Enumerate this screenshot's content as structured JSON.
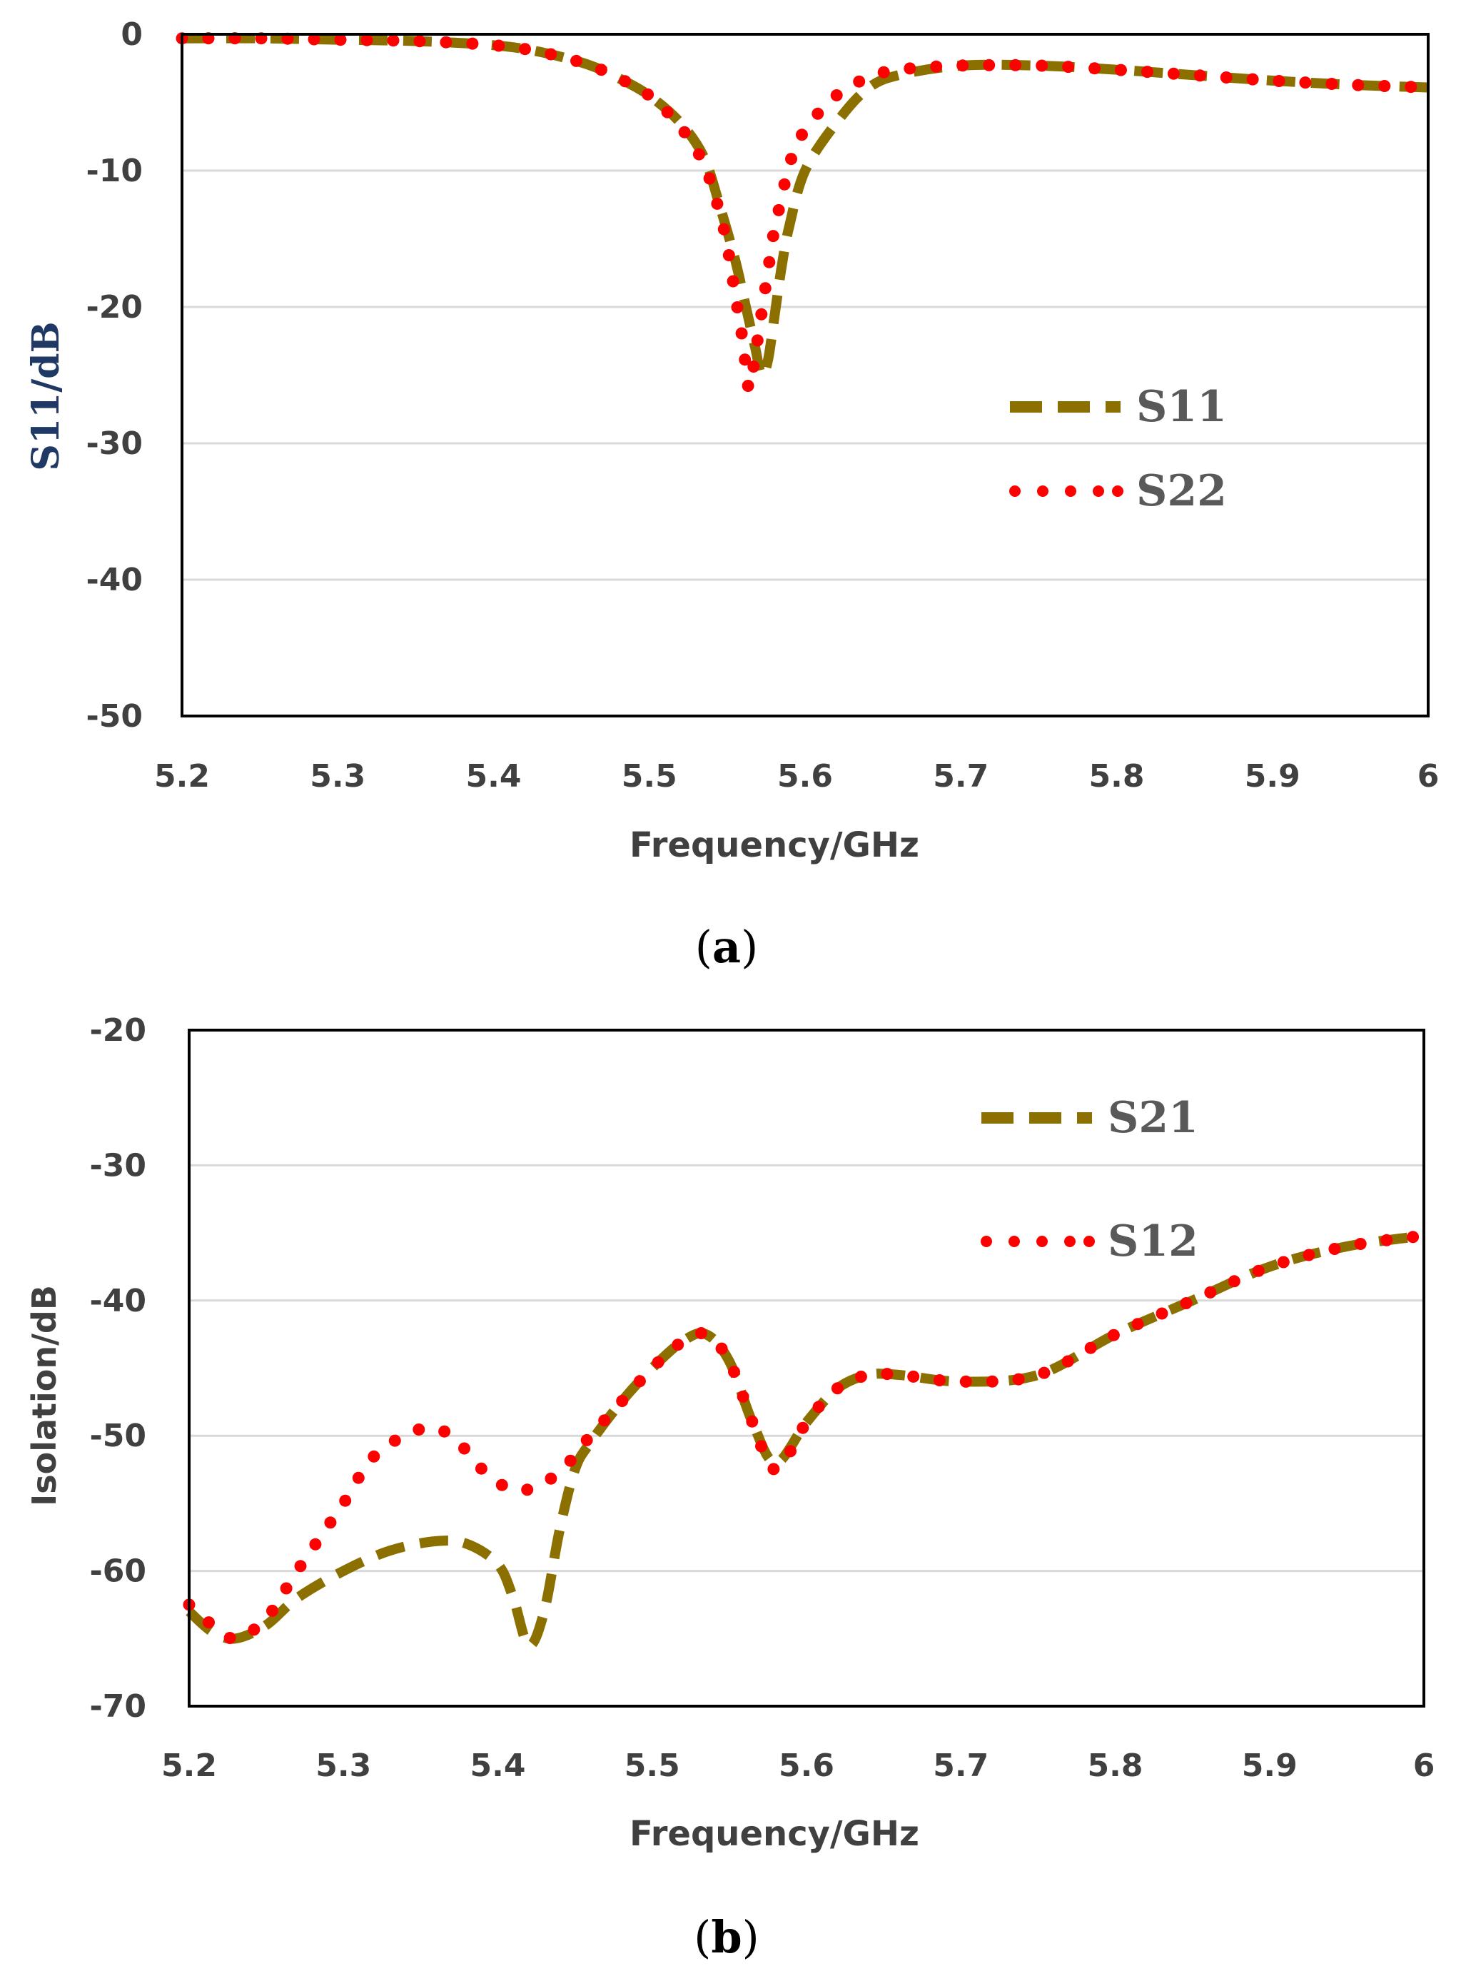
{
  "chart_data": [
    {
      "type": "line",
      "caption_open": "(",
      "caption_letter": "a",
      "caption_close": ")",
      "xlabel": "Frequency/GHz",
      "ylabel": "S11/dB",
      "xlim": [
        5.2,
        6.0
      ],
      "ylim": [
        -50,
        0
      ],
      "xticks": [
        5.2,
        5.3,
        5.4,
        5.5,
        5.6,
        5.7,
        5.8,
        5.9,
        6.0
      ],
      "xtick_labels": [
        "5.2",
        "5.3",
        "5.4",
        "5.5",
        "5.6",
        "5.7",
        "5.8",
        "5.9",
        "6"
      ],
      "yticks": [
        0,
        -10,
        -20,
        -30,
        -40,
        -50
      ],
      "ytick_labels": [
        "0",
        "-10",
        "-20",
        "-30",
        "-40",
        "-50"
      ],
      "grid": true,
      "legend_position": "right",
      "series": [
        {
          "name": "S11",
          "style": "dashed",
          "color": "#8B7000",
          "x": [
            5.2,
            5.25,
            5.3,
            5.35,
            5.4,
            5.43,
            5.46,
            5.48,
            5.5,
            5.52,
            5.535,
            5.545,
            5.555,
            5.562,
            5.568,
            5.572,
            5.576,
            5.58,
            5.585,
            5.59,
            5.6,
            5.62,
            5.64,
            5.66,
            5.7,
            5.75,
            5.8,
            5.85,
            5.9,
            5.95,
            6.0
          ],
          "y": [
            -0.3,
            -0.3,
            -0.4,
            -0.5,
            -0.8,
            -1.3,
            -2.2,
            -3.2,
            -4.5,
            -6.5,
            -9.0,
            -12.5,
            -16.5,
            -20.0,
            -23.0,
            -25.0,
            -24.0,
            -21.0,
            -17.0,
            -14.0,
            -10.0,
            -6.5,
            -4.0,
            -3.0,
            -2.3,
            -2.3,
            -2.6,
            -3.0,
            -3.4,
            -3.7,
            -3.9
          ]
        },
        {
          "name": "S22",
          "style": "dotted",
          "color": "#FF0000",
          "x": [
            5.2,
            5.25,
            5.3,
            5.35,
            5.4,
            5.43,
            5.46,
            5.48,
            5.5,
            5.52,
            5.535,
            5.545,
            5.55,
            5.555,
            5.56,
            5.564,
            5.568,
            5.572,
            5.576,
            5.58,
            5.585,
            5.59,
            5.6,
            5.62,
            5.64,
            5.66,
            5.7,
            5.75,
            5.8,
            5.85,
            5.9,
            5.95,
            6.0
          ],
          "y": [
            -0.3,
            -0.3,
            -0.4,
            -0.5,
            -0.8,
            -1.3,
            -2.2,
            -3.2,
            -4.5,
            -6.8,
            -9.5,
            -13.0,
            -15.5,
            -19.0,
            -22.5,
            -26.0,
            -23.5,
            -20.5,
            -17.5,
            -14.5,
            -12.0,
            -9.5,
            -7.0,
            -4.5,
            -3.2,
            -2.6,
            -2.3,
            -2.3,
            -2.6,
            -3.0,
            -3.4,
            -3.7,
            -3.9
          ]
        }
      ]
    },
    {
      "type": "line",
      "caption_open": "(",
      "caption_letter": "b",
      "caption_close": ")",
      "xlabel": "Frequency/GHz",
      "ylabel": "Isolation/dB",
      "xlim": [
        5.2,
        6.0
      ],
      "ylim": [
        -70,
        -20
      ],
      "xticks": [
        5.2,
        5.3,
        5.4,
        5.5,
        5.6,
        5.7,
        5.8,
        5.9,
        6.0
      ],
      "xtick_labels": [
        "5.2",
        "5.3",
        "5.4",
        "5.5",
        "5.6",
        "5.7",
        "5.8",
        "5.9",
        "6"
      ],
      "yticks": [
        -20,
        -30,
        -40,
        -50,
        -60,
        -70
      ],
      "ytick_labels": [
        "-20",
        "-30",
        "-40",
        "-50",
        "-60",
        "-70"
      ],
      "grid": true,
      "legend_position": "top-right",
      "series": [
        {
          "name": "S21",
          "style": "dashed",
          "color": "#8B7000",
          "x": [
            5.2,
            5.215,
            5.23,
            5.25,
            5.27,
            5.3,
            5.33,
            5.36,
            5.38,
            5.4,
            5.41,
            5.42,
            5.43,
            5.44,
            5.45,
            5.46,
            5.48,
            5.5,
            5.52,
            5.535,
            5.55,
            5.565,
            5.58,
            5.6,
            5.62,
            5.64,
            5.66,
            5.7,
            5.75,
            5.8,
            5.85,
            5.9,
            5.95,
            6.0
          ],
          "y": [
            -63.0,
            -64.5,
            -65.0,
            -64.0,
            -62.0,
            -60.0,
            -58.5,
            -57.8,
            -58.0,
            -59.5,
            -62.0,
            -65.5,
            -63.0,
            -57.0,
            -52.5,
            -50.5,
            -47.5,
            -45.0,
            -43.0,
            -42.5,
            -44.5,
            -49.0,
            -52.0,
            -49.0,
            -46.5,
            -45.5,
            -45.5,
            -46.0,
            -45.5,
            -42.5,
            -40.0,
            -37.5,
            -36.0,
            -35.2
          ]
        },
        {
          "name": "S12",
          "style": "dotted",
          "color": "#FF0000",
          "x": [
            5.2,
            5.215,
            5.23,
            5.25,
            5.27,
            5.3,
            5.32,
            5.35,
            5.37,
            5.39,
            5.41,
            5.43,
            5.45,
            5.46,
            5.48,
            5.5,
            5.52,
            5.535,
            5.55,
            5.565,
            5.58,
            5.6,
            5.62,
            5.64,
            5.66,
            5.7,
            5.75,
            5.8,
            5.85,
            5.9,
            5.95,
            6.0
          ],
          "y": [
            -62.5,
            -64.0,
            -65.0,
            -63.5,
            -60.0,
            -55.0,
            -51.5,
            -49.5,
            -50.0,
            -52.5,
            -54.0,
            -53.5,
            -51.5,
            -50.0,
            -47.5,
            -45.0,
            -43.0,
            -42.5,
            -44.5,
            -49.0,
            -52.5,
            -49.0,
            -46.5,
            -45.5,
            -45.5,
            -46.0,
            -45.5,
            -42.5,
            -40.0,
            -37.5,
            -36.0,
            -35.2
          ]
        }
      ]
    }
  ]
}
